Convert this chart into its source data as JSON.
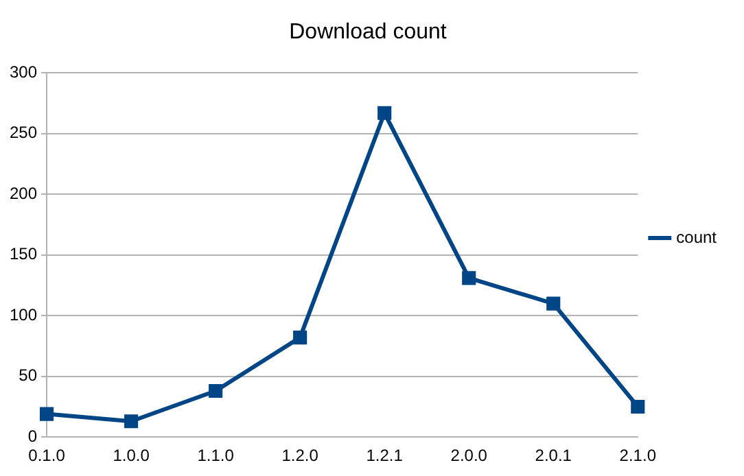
{
  "chart_data": {
    "type": "line",
    "title": "Download count",
    "categories": [
      "0.1.0",
      "1.0.0",
      "1.1.0",
      "1.2.0",
      "1.2.1",
      "2.0.0",
      "2.0.1",
      "2.1.0"
    ],
    "series": [
      {
        "name": "count",
        "color": "#004586",
        "values": [
          19,
          13,
          38,
          82,
          267,
          131,
          110,
          25
        ]
      }
    ],
    "ylim": [
      0,
      300
    ],
    "yticks": [
      0,
      50,
      100,
      150,
      200,
      250,
      300
    ],
    "grid": "y",
    "legend": "right",
    "marker": "square",
    "line_style": "solid"
  }
}
